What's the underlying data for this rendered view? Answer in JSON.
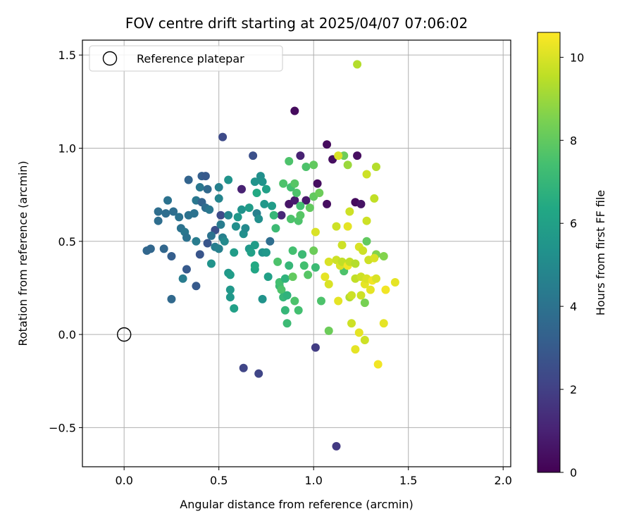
{
  "chart_data": {
    "type": "scatter",
    "title": "FOV centre drift starting at 2025/04/07 07:06:02",
    "xlabel": "Angular distance from reference (arcmin)",
    "ylabel": "Rotation from reference (arcmin)",
    "xlim": [
      -0.22,
      2.04
    ],
    "ylim": [
      -0.71,
      1.58
    ],
    "x_ticks": [
      0.0,
      0.5,
      1.0,
      1.5,
      2.0
    ],
    "x_tick_labels": [
      "0.0",
      "0.5",
      "1.0",
      "1.5",
      "2.0"
    ],
    "y_ticks": [
      -0.5,
      0.0,
      0.5,
      1.0,
      1.5
    ],
    "y_tick_labels": [
      "−0.5",
      "0.0",
      "0.5",
      "1.0",
      "1.5"
    ],
    "grid": true,
    "legend": {
      "placement": "upper-left",
      "entries": [
        {
          "label": "Reference platepar",
          "marker": "open-circle"
        }
      ]
    },
    "reference_point": {
      "x": 0.0,
      "y": 0.0
    },
    "colorbar": {
      "label": "Hours from first FF file",
      "colormap": "viridis",
      "range": [
        0,
        10.6
      ],
      "ticks": [
        0,
        2,
        4,
        6,
        8,
        10
      ],
      "tick_labels": [
        "0",
        "2",
        "4",
        "6",
        "8",
        "10"
      ]
    },
    "series": [
      {
        "color_by": "hours",
        "points": [
          [
            0.9,
            1.2,
            0.3
          ],
          [
            1.07,
            1.02,
            0.3
          ],
          [
            1.1,
            0.94,
            0.4
          ],
          [
            1.23,
            0.96,
            0.4
          ],
          [
            0.93,
            0.96,
            1.0
          ],
          [
            1.02,
            0.81,
            0.4
          ],
          [
            1.22,
            0.71,
            0.3
          ],
          [
            1.25,
            0.7,
            0.5
          ],
          [
            0.87,
            0.7,
            0.6
          ],
          [
            0.9,
            0.72,
            0.8
          ],
          [
            0.96,
            0.72,
            0.7
          ],
          [
            1.07,
            0.7,
            0.4
          ],
          [
            0.83,
            0.64,
            1.2
          ],
          [
            0.62,
            0.78,
            1.0
          ],
          [
            0.94,
            0.43,
            1.8
          ],
          [
            1.01,
            -0.07,
            1.9
          ],
          [
            1.12,
            -0.6,
            1.8
          ],
          [
            0.63,
            -0.18,
            2.2
          ],
          [
            0.71,
            -0.21,
            2.2
          ],
          [
            0.52,
            1.06,
            2.4
          ],
          [
            0.68,
            0.96,
            2.6
          ],
          [
            0.51,
            0.64,
            2.4
          ],
          [
            0.48,
            0.56,
            2.6
          ],
          [
            0.44,
            0.49,
            2.8
          ],
          [
            0.4,
            0.43,
            2.8
          ],
          [
            0.38,
            0.26,
            3.0
          ],
          [
            0.33,
            0.35,
            3.0
          ],
          [
            0.25,
            0.42,
            3.2
          ],
          [
            0.25,
            0.19,
            3.6
          ],
          [
            0.31,
            0.3,
            4.4
          ],
          [
            0.12,
            0.45,
            3.5
          ],
          [
            0.14,
            0.46,
            3.5
          ],
          [
            0.21,
            0.46,
            3.5
          ],
          [
            0.18,
            0.61,
            3.8
          ],
          [
            0.18,
            0.66,
            3.8
          ],
          [
            0.22,
            0.65,
            3.8
          ],
          [
            0.23,
            0.72,
            4.0
          ],
          [
            0.26,
            0.66,
            3.8
          ],
          [
            0.29,
            0.63,
            4.0
          ],
          [
            0.3,
            0.57,
            4.0
          ],
          [
            0.32,
            0.55,
            4.2
          ],
          [
            0.33,
            0.52,
            4.0
          ],
          [
            0.34,
            0.64,
            4.0
          ],
          [
            0.34,
            0.83,
            3.4
          ],
          [
            0.37,
            0.65,
            4.0
          ],
          [
            0.38,
            0.72,
            4.2
          ],
          [
            0.38,
            0.5,
            4.4
          ],
          [
            0.4,
            0.79,
            4.2
          ],
          [
            0.41,
            0.85,
            3.2
          ],
          [
            0.43,
            0.85,
            3.0
          ],
          [
            0.41,
            0.71,
            3.4
          ],
          [
            0.44,
            0.78,
            3.6
          ],
          [
            0.43,
            0.68,
            3.8
          ],
          [
            0.45,
            0.67,
            4.2
          ],
          [
            0.46,
            0.53,
            4.0
          ],
          [
            0.48,
            0.47,
            4.4
          ],
          [
            0.5,
            0.46,
            4.6
          ],
          [
            0.5,
            0.79,
            4.6
          ],
          [
            0.5,
            0.73,
            4.8
          ],
          [
            0.51,
            0.59,
            4.4
          ],
          [
            0.52,
            0.52,
            4.6
          ],
          [
            0.53,
            0.5,
            5.0
          ],
          [
            0.55,
            0.64,
            4.8
          ],
          [
            0.55,
            0.83,
            5.4
          ],
          [
            0.46,
            0.38,
            5.4
          ],
          [
            0.55,
            0.33,
            5.6
          ],
          [
            0.56,
            0.32,
            5.8
          ],
          [
            0.56,
            0.24,
            5.6
          ],
          [
            0.56,
            0.2,
            5.6
          ],
          [
            0.58,
            0.14,
            6.0
          ],
          [
            0.58,
            0.44,
            5.8
          ],
          [
            0.59,
            0.58,
            5.2
          ],
          [
            0.6,
            0.63,
            5.6
          ],
          [
            0.62,
            0.67,
            5.4
          ],
          [
            0.63,
            0.54,
            5.2
          ],
          [
            0.64,
            0.57,
            5.0
          ],
          [
            0.66,
            0.46,
            5.6
          ],
          [
            0.66,
            0.68,
            5.8
          ],
          [
            0.67,
            0.44,
            6.0
          ],
          [
            0.69,
            0.82,
            5.4
          ],
          [
            0.69,
            0.48,
            5.8
          ],
          [
            0.7,
            0.65,
            4.6
          ],
          [
            0.71,
            0.62,
            5.2
          ],
          [
            0.72,
            0.85,
            5.2
          ],
          [
            0.73,
            0.82,
            5.4
          ],
          [
            0.73,
            0.44,
            5.4
          ],
          [
            0.73,
            0.19,
            5.4
          ],
          [
            0.74,
            0.7,
            5.6
          ],
          [
            0.75,
            0.44,
            5.6
          ],
          [
            0.75,
            0.78,
            6.0
          ],
          [
            0.76,
            0.31,
            6.0
          ],
          [
            0.77,
            0.5,
            3.8
          ],
          [
            0.78,
            0.69,
            5.8
          ],
          [
            0.69,
            0.35,
            6.2
          ],
          [
            0.69,
            0.37,
            6.4
          ],
          [
            0.7,
            0.76,
            6.4
          ],
          [
            0.79,
            0.64,
            7.0
          ],
          [
            0.8,
            0.57,
            7.2
          ],
          [
            0.81,
            0.39,
            7.6
          ],
          [
            0.82,
            0.26,
            7.2
          ],
          [
            0.82,
            0.28,
            7.4
          ],
          [
            0.83,
            0.24,
            7.6
          ],
          [
            0.84,
            0.2,
            7.0
          ],
          [
            0.85,
            0.3,
            6.8
          ],
          [
            0.85,
            0.13,
            7.0
          ],
          [
            0.86,
            0.06,
            7.2
          ],
          [
            0.86,
            0.21,
            6.8
          ],
          [
            0.87,
            0.37,
            7.0
          ],
          [
            0.84,
            0.81,
            7.6
          ],
          [
            0.87,
            0.93,
            7.6
          ],
          [
            0.88,
            0.79,
            7.4
          ],
          [
            0.88,
            0.62,
            7.6
          ],
          [
            0.89,
            0.45,
            7.4
          ],
          [
            0.89,
            0.31,
            8.0
          ],
          [
            0.9,
            0.18,
            7.6
          ],
          [
            0.9,
            0.81,
            7.8
          ],
          [
            0.91,
            0.76,
            7.6
          ],
          [
            0.92,
            0.13,
            7.4
          ],
          [
            0.92,
            0.61,
            7.6
          ],
          [
            0.93,
            0.64,
            7.8
          ],
          [
            0.93,
            0.69,
            7.4
          ],
          [
            0.94,
            0.43,
            7.2
          ],
          [
            0.95,
            0.37,
            7.4
          ],
          [
            0.96,
            0.9,
            7.6
          ],
          [
            0.97,
            0.32,
            7.8
          ],
          [
            0.98,
            0.68,
            8.0
          ],
          [
            1.0,
            0.45,
            8.2
          ],
          [
            1.0,
            0.91,
            8.0
          ],
          [
            1.0,
            0.74,
            8.0
          ],
          [
            1.01,
            0.36,
            7.2
          ],
          [
            1.03,
            0.76,
            8.2
          ],
          [
            1.04,
            0.18,
            7.6
          ],
          [
            1.08,
            0.02,
            8.2
          ],
          [
            1.16,
            0.34,
            7.6
          ],
          [
            1.16,
            0.96,
            8.2
          ],
          [
            1.18,
            0.91,
            9.0
          ],
          [
            1.27,
            0.17,
            8.4
          ],
          [
            1.28,
            0.5,
            8.0
          ],
          [
            1.33,
            0.43,
            8.6
          ],
          [
            1.37,
            0.42,
            8.6
          ],
          [
            1.01,
            0.55,
            10.0
          ],
          [
            1.06,
            0.31,
            10.2
          ],
          [
            1.08,
            0.27,
            10.0
          ],
          [
            1.08,
            0.39,
            10.0
          ],
          [
            1.13,
            0.96,
            10.0
          ],
          [
            1.12,
            0.58,
            9.8
          ],
          [
            1.12,
            0.4,
            9.8
          ],
          [
            1.13,
            0.18,
            10.2
          ],
          [
            1.14,
            0.37,
            10.0
          ],
          [
            1.15,
            0.39,
            9.6
          ],
          [
            1.15,
            0.48,
            9.8
          ],
          [
            1.18,
            0.37,
            10.4
          ],
          [
            1.18,
            0.58,
            10.2
          ],
          [
            1.19,
            0.66,
            9.8
          ],
          [
            1.19,
            0.39,
            9.6
          ],
          [
            1.19,
            0.2,
            9.4
          ],
          [
            1.2,
            0.21,
            9.8
          ],
          [
            1.2,
            0.06,
            9.8
          ],
          [
            1.22,
            0.3,
            9.6
          ],
          [
            1.22,
            0.38,
            9.4
          ],
          [
            1.22,
            -0.08,
            10.2
          ],
          [
            1.23,
            1.45,
            9.4
          ],
          [
            1.24,
            0.01,
            10.2
          ],
          [
            1.24,
            0.47,
            10.0
          ],
          [
            1.25,
            0.31,
            9.8
          ],
          [
            1.25,
            0.21,
            9.8
          ],
          [
            1.26,
            0.45,
            9.8
          ],
          [
            1.27,
            0.27,
            10.2
          ],
          [
            1.27,
            -0.03,
            9.8
          ],
          [
            1.28,
            0.3,
            10.0
          ],
          [
            1.28,
            0.61,
            9.8
          ],
          [
            1.28,
            0.86,
            9.8
          ],
          [
            1.29,
            0.4,
            9.8
          ],
          [
            1.3,
            0.24,
            10.2
          ],
          [
            1.31,
            0.29,
            10.4
          ],
          [
            1.32,
            0.41,
            10.0
          ],
          [
            1.33,
            0.3,
            10.0
          ],
          [
            1.32,
            0.73,
            9.6
          ],
          [
            1.33,
            0.9,
            9.4
          ],
          [
            1.34,
            -0.16,
            10.4
          ],
          [
            1.37,
            0.06,
            10.2
          ],
          [
            1.38,
            0.24,
            10.4
          ],
          [
            1.43,
            0.28,
            10.2
          ]
        ]
      }
    ]
  }
}
